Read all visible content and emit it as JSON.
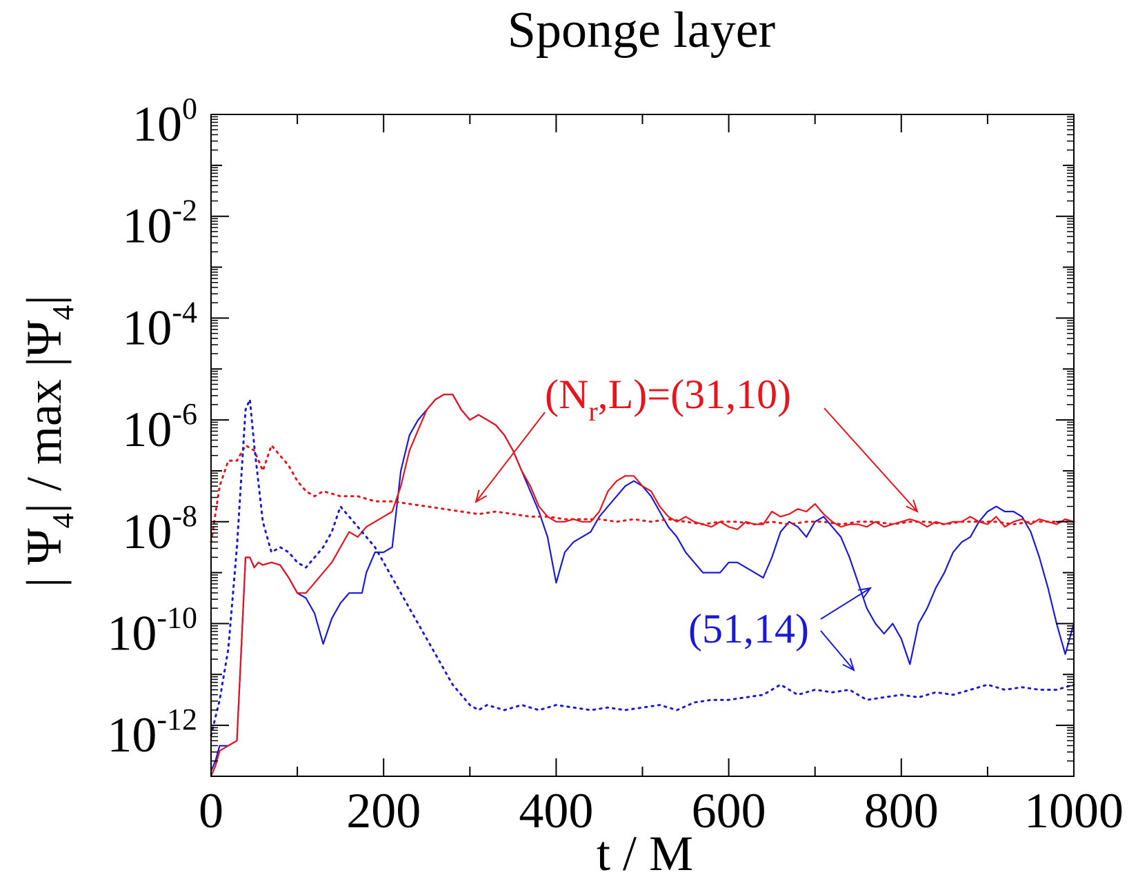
{
  "chart_data": {
    "type": "line",
    "title": "Sponge layer",
    "xlabel": "t / M",
    "ylabel": "| Ψ4| / max |Ψ4|",
    "ylabel_parts": {
      "pre": "| Ψ",
      "sub1": "4",
      "mid": "| / max |Ψ",
      "sub2": "4",
      "post": "|"
    },
    "xlim": [
      0,
      1000
    ],
    "ylim_log10": [
      -13,
      0
    ],
    "yscale": "log",
    "grid": false,
    "x_ticks": [
      0,
      200,
      400,
      600,
      800,
      1000
    ],
    "y_ticks": [
      {
        "base": "10",
        "exp": "0",
        "value": 0
      },
      {
        "base": "10",
        "exp": "-2",
        "value": -2
      },
      {
        "base": "10",
        "exp": "-4",
        "value": -4
      },
      {
        "base": "10",
        "exp": "-6",
        "value": -6
      },
      {
        "base": "10",
        "exp": "-8",
        "value": -8
      },
      {
        "base": "10",
        "exp": "-10",
        "value": -10
      },
      {
        "base": "10",
        "exp": "-12",
        "value": -12
      }
    ],
    "colors": {
      "red": "#e8141b",
      "blue": "#1a1ad6",
      "axis": "#000000"
    },
    "annotations": [
      {
        "text_parts": {
          "a": "(N",
          "sub": "r",
          "b": ",L)=(31,10)"
        },
        "color": "#e8141b",
        "x": 300,
        "y_log10": -6.5
      },
      {
        "text": "(51,14)",
        "color": "#1a1ad6",
        "x": 560,
        "y_log10": -10.3
      }
    ],
    "series": [
      {
        "line": "solid",
        "color": "#1a1ad6",
        "x": [
          0,
          5,
          10,
          20,
          30,
          35,
          40,
          45,
          50,
          55,
          60,
          70,
          80,
          90,
          100,
          110,
          120,
          130,
          140,
          150,
          160,
          175,
          180,
          190,
          200,
          210,
          220,
          230,
          240,
          250,
          260,
          270,
          280,
          290,
          300,
          310,
          320,
          330,
          340,
          350,
          360,
          370,
          380,
          390,
          400,
          410,
          420,
          430,
          440,
          450,
          460,
          470,
          480,
          490,
          500,
          510,
          520,
          530,
          540,
          550,
          560,
          570,
          580,
          590,
          600,
          610,
          620,
          630,
          640,
          650,
          660,
          670,
          680,
          690,
          700,
          710,
          720,
          730,
          740,
          750,
          760,
          770,
          780,
          790,
          800,
          810,
          820,
          830,
          840,
          850,
          860,
          870,
          880,
          890,
          900,
          910,
          920,
          930,
          940,
          950,
          960,
          970,
          980,
          990,
          1000
        ],
        "y_log10": [
          -12.9,
          -12.7,
          -12.4,
          -12.4,
          -12.3,
          -10.5,
          -8.7,
          -8.7,
          -8.9,
          -8.8,
          -8.85,
          -8.8,
          -8.85,
          -9.1,
          -9.4,
          -9.5,
          -9.8,
          -10.4,
          -9.9,
          -9.6,
          -9.4,
          -9.4,
          -9.0,
          -8.6,
          -8.6,
          -8.5,
          -7.0,
          -6.3,
          -6.0,
          -5.8,
          -5.6,
          -5.5,
          -5.5,
          -5.8,
          -6.0,
          -5.9,
          -6.0,
          -6.1,
          -6.3,
          -6.6,
          -7.0,
          -7.4,
          -7.8,
          -8.3,
          -9.2,
          -8.6,
          -8.4,
          -8.3,
          -8.2,
          -7.9,
          -7.7,
          -7.5,
          -7.3,
          -7.2,
          -7.3,
          -7.5,
          -7.8,
          -8.1,
          -8.3,
          -8.6,
          -8.8,
          -9.0,
          -9.0,
          -9.0,
          -8.8,
          -8.8,
          -8.9,
          -9.0,
          -9.1,
          -8.7,
          -8.2,
          -8.0,
          -8.1,
          -8.3,
          -8.0,
          -7.9,
          -8.1,
          -8.3,
          -8.7,
          -9.2,
          -9.7,
          -10.0,
          -10.2,
          -10.0,
          -10.3,
          -10.8,
          -10.0,
          -9.7,
          -9.3,
          -9.0,
          -8.6,
          -8.4,
          -8.3,
          -8.0,
          -7.8,
          -7.7,
          -7.8,
          -7.8,
          -7.9,
          -8.2,
          -8.7,
          -9.3,
          -10.0,
          -10.6,
          -10.0
        ]
      },
      {
        "line": "solid",
        "color": "#e8141b",
        "x": [
          0,
          5,
          10,
          20,
          30,
          35,
          40,
          45,
          50,
          55,
          60,
          70,
          80,
          90,
          100,
          110,
          120,
          130,
          140,
          150,
          160,
          170,
          180,
          190,
          200,
          210,
          220,
          230,
          240,
          250,
          260,
          270,
          280,
          290,
          300,
          310,
          320,
          330,
          340,
          350,
          360,
          370,
          380,
          390,
          400,
          410,
          420,
          430,
          440,
          450,
          460,
          470,
          480,
          490,
          500,
          510,
          520,
          530,
          540,
          550,
          560,
          570,
          580,
          590,
          600,
          610,
          620,
          630,
          640,
          650,
          660,
          670,
          680,
          690,
          700,
          710,
          720,
          730,
          740,
          750,
          760,
          770,
          780,
          790,
          800,
          810,
          820,
          830,
          840,
          850,
          860,
          870,
          880,
          890,
          900,
          910,
          920,
          930,
          940,
          950,
          960,
          970,
          980,
          990,
          1000
        ],
        "y_log10": [
          -13.0,
          -12.8,
          -12.5,
          -12.4,
          -12.3,
          -10.5,
          -8.7,
          -8.7,
          -8.9,
          -8.8,
          -8.85,
          -8.8,
          -8.85,
          -9.1,
          -9.4,
          -9.4,
          -9.2,
          -9.0,
          -8.8,
          -8.5,
          -8.2,
          -8.3,
          -8.1,
          -8.0,
          -7.9,
          -7.8,
          -7.3,
          -6.6,
          -6.2,
          -5.8,
          -5.6,
          -5.5,
          -5.5,
          -5.8,
          -6.0,
          -5.9,
          -6.0,
          -6.1,
          -6.3,
          -6.6,
          -7.0,
          -7.3,
          -7.7,
          -7.9,
          -8.0,
          -8.0,
          -7.95,
          -8.0,
          -8.0,
          -7.8,
          -7.4,
          -7.2,
          -7.1,
          -7.1,
          -7.3,
          -7.4,
          -7.7,
          -7.9,
          -8.0,
          -7.9,
          -8.0,
          -8.05,
          -8.1,
          -8.0,
          -8.1,
          -8.15,
          -8.0,
          -8.05,
          -8.05,
          -7.8,
          -7.9,
          -7.85,
          -7.75,
          -7.8,
          -7.65,
          -7.85,
          -8.0,
          -8.1,
          -8.05,
          -8.05,
          -8.1,
          -8.0,
          -8.1,
          -8.05,
          -8.0,
          -7.95,
          -8.0,
          -8.1,
          -8.0,
          -8.05,
          -8.0,
          -8.0,
          -7.9,
          -8.0,
          -8.05,
          -7.9,
          -8.1,
          -8.0,
          -7.95,
          -8.05,
          -7.95,
          -8.0,
          -8.05,
          -7.95,
          -8.0
        ]
      },
      {
        "line": "dotted",
        "color": "#e8141b",
        "x": [
          0,
          10,
          20,
          30,
          40,
          50,
          60,
          70,
          80,
          90,
          100,
          110,
          120,
          130,
          150,
          170,
          190,
          210,
          230,
          250,
          270,
          290,
          310,
          330,
          350,
          370,
          390,
          410,
          430,
          450,
          470,
          490,
          510,
          530,
          550,
          570,
          590,
          610,
          630,
          650,
          670,
          690,
          710,
          730,
          750,
          770,
          790,
          810,
          830,
          850,
          870,
          890,
          910,
          930,
          950,
          970,
          990,
          1000
        ],
        "y_log10": [
          -8.4,
          -7.3,
          -6.8,
          -6.8,
          -6.5,
          -6.6,
          -7.0,
          -6.5,
          -6.7,
          -6.9,
          -7.2,
          -7.4,
          -7.5,
          -7.4,
          -7.5,
          -7.5,
          -7.6,
          -7.6,
          -7.65,
          -7.7,
          -7.75,
          -7.8,
          -7.85,
          -7.8,
          -7.85,
          -7.9,
          -7.9,
          -7.95,
          -7.95,
          -7.95,
          -8.0,
          -7.95,
          -8.0,
          -7.95,
          -8.0,
          -8.05,
          -8.0,
          -8.0,
          -8.05,
          -8.0,
          -8.05,
          -8.0,
          -8.0,
          -8.05,
          -8.0,
          -8.0,
          -8.05,
          -8.0,
          -8.0,
          -8.05,
          -8.0,
          -8.0,
          -8.0,
          -8.05,
          -8.0,
          -8.0,
          -8.0,
          -8.0
        ]
      },
      {
        "line": "dotted",
        "color": "#1a1ad6",
        "x": [
          0,
          10,
          20,
          30,
          40,
          45,
          50,
          60,
          70,
          80,
          90,
          100,
          110,
          120,
          130,
          140,
          150,
          160,
          170,
          180,
          190,
          200,
          220,
          240,
          260,
          280,
          300,
          310,
          320,
          340,
          360,
          380,
          400,
          420,
          440,
          460,
          480,
          500,
          520,
          540,
          560,
          580,
          600,
          620,
          640,
          660,
          680,
          700,
          720,
          740,
          760,
          780,
          800,
          820,
          840,
          860,
          880,
          900,
          920,
          940,
          960,
          980,
          1000
        ],
        "y_log10": [
          -12.2,
          -11.5,
          -10.5,
          -8.5,
          -5.8,
          -5.6,
          -6.5,
          -8.0,
          -8.6,
          -8.5,
          -8.6,
          -8.8,
          -8.9,
          -8.7,
          -8.5,
          -8.2,
          -7.7,
          -7.9,
          -8.1,
          -8.3,
          -8.5,
          -8.8,
          -9.4,
          -10.0,
          -10.6,
          -11.2,
          -11.6,
          -11.7,
          -11.6,
          -11.7,
          -11.6,
          -11.7,
          -11.6,
          -11.65,
          -11.7,
          -11.65,
          -11.7,
          -11.65,
          -11.6,
          -11.7,
          -11.55,
          -11.5,
          -11.5,
          -11.45,
          -11.4,
          -11.2,
          -11.4,
          -11.3,
          -11.35,
          -11.3,
          -11.5,
          -11.45,
          -11.4,
          -11.45,
          -11.35,
          -11.4,
          -11.3,
          -11.2,
          -11.3,
          -11.25,
          -11.3,
          -11.3,
          -11.2
        ]
      }
    ]
  }
}
